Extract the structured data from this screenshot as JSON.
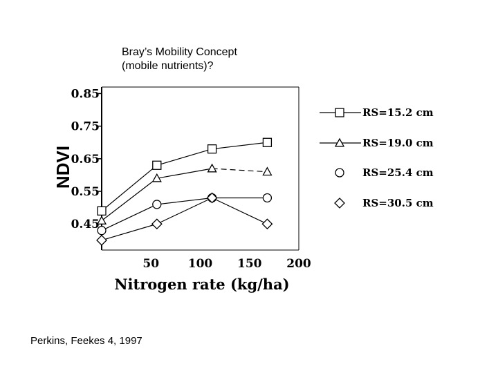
{
  "title": {
    "line1": "Bray’s Mobility Concept",
    "line2": "(mobile nutrients)?"
  },
  "source": "Perkins, Feekes 4, 1997",
  "chart_data": {
    "type": "line",
    "xlabel": "Nitrogen rate (kg/ha)",
    "ylabel": "NDVI",
    "xlim": [
      0,
      200
    ],
    "ylim": [
      0.37,
      0.87
    ],
    "x_ticks": [
      50,
      100,
      150,
      200
    ],
    "x_tick_labels": [
      "50",
      "100",
      "150",
      "200"
    ],
    "y_ticks": [
      0.45,
      0.55,
      0.65,
      0.75,
      0.85
    ],
    "y_tick_labels": [
      "0.45",
      "0.55",
      "0.65",
      "0.75",
      "0.85"
    ],
    "grid": false,
    "legend_position": "right",
    "x": [
      0,
      56,
      112,
      168
    ],
    "series": [
      {
        "name": "RS=15.2 cm",
        "marker": "square",
        "dash": false,
        "values": [
          0.49,
          0.63,
          0.68,
          0.7
        ]
      },
      {
        "name": "RS=19.0 cm",
        "marker": "triangle",
        "dash": true,
        "values": [
          0.46,
          0.59,
          0.62,
          0.61
        ]
      },
      {
        "name": "RS=25.4 cm",
        "marker": "circle",
        "dash": false,
        "values": [
          0.43,
          0.51,
          0.53,
          0.53
        ]
      },
      {
        "name": "RS=30.5 cm",
        "marker": "diamond",
        "dash": false,
        "values": [
          0.4,
          0.45,
          0.53,
          0.45
        ]
      }
    ]
  }
}
